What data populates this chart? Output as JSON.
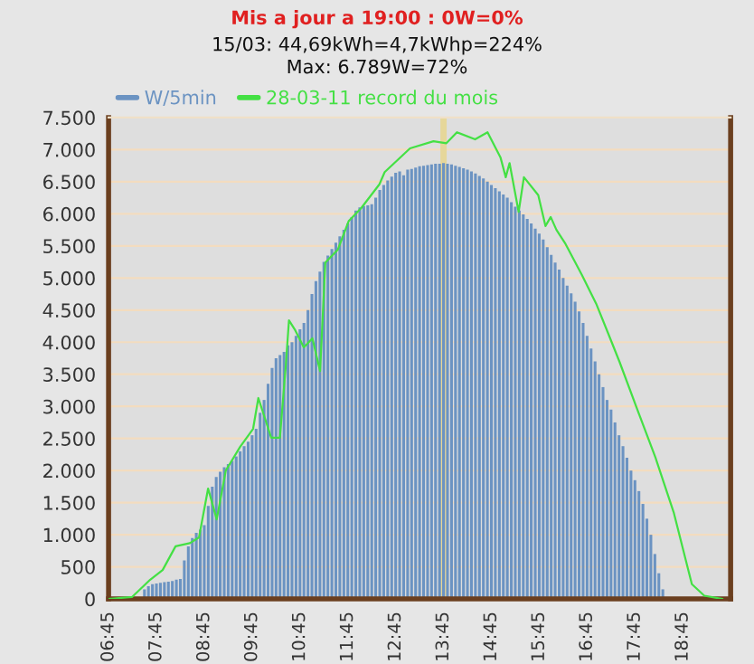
{
  "chart_data": {
    "type": "bar",
    "title": "Mis a jour a 19:00 : 0W=0%",
    "subtitle": "15/03: 44,69kWh=4,7kWhp=224%\nMax: 6.789W=72%",
    "series": [
      {
        "name": "W/5min",
        "color": "#6b93c2",
        "x": [
          6.75,
          6.833,
          6.917,
          7.0,
          7.083,
          7.167,
          7.25,
          7.333,
          7.417,
          7.5,
          7.583,
          7.667,
          7.75,
          7.833,
          7.917,
          8.0,
          8.083,
          8.167,
          8.25,
          8.333,
          8.417,
          8.5,
          8.583,
          8.667,
          8.75,
          8.833,
          8.917,
          9.0,
          9.083,
          9.167,
          9.25,
          9.333,
          9.417,
          9.5,
          9.583,
          9.667,
          9.75,
          9.833,
          9.917,
          10.0,
          10.083,
          10.167,
          10.25,
          10.333,
          10.417,
          10.5,
          10.583,
          10.667,
          10.75,
          10.833,
          10.917,
          11.0,
          11.083,
          11.167,
          11.25,
          11.333,
          11.417,
          11.5,
          11.583,
          11.667,
          11.75,
          11.833,
          11.917,
          12.0,
          12.083,
          12.167,
          12.25,
          12.333,
          12.417,
          12.5,
          12.583,
          12.667,
          12.75,
          12.833,
          12.917,
          13.0,
          13.083,
          13.167,
          13.25,
          13.333,
          13.417,
          13.5,
          13.583,
          13.667,
          13.75,
          13.833,
          13.917,
          14.0,
          14.083,
          14.167,
          14.25,
          14.333,
          14.417,
          14.5,
          14.583,
          14.667,
          14.75,
          14.833,
          14.917,
          15.0,
          15.083,
          15.167,
          15.25,
          15.333,
          15.417,
          15.5,
          15.583,
          15.667,
          15.75,
          15.833,
          15.917,
          16.0,
          16.083,
          16.167,
          16.25,
          16.333,
          16.417,
          16.5,
          16.583,
          16.667,
          16.75,
          16.833,
          16.917,
          17.0,
          17.083,
          17.167,
          17.25,
          17.333,
          17.417,
          17.5,
          17.583,
          17.667,
          17.75,
          17.833,
          17.917,
          18.0,
          18.083,
          18.167,
          18.25,
          18.333
        ],
        "values": [
          0,
          0,
          0,
          0,
          0,
          0,
          0,
          0,
          0,
          150,
          200,
          230,
          240,
          250,
          260,
          270,
          280,
          300,
          310,
          600,
          820,
          950,
          1030,
          1080,
          1150,
          1450,
          1750,
          1900,
          1980,
          2050,
          2100,
          2150,
          2220,
          2300,
          2380,
          2450,
          2550,
          2650,
          2900,
          3100,
          3350,
          3600,
          3750,
          3800,
          3850,
          3950,
          4000,
          4100,
          4200,
          4300,
          4500,
          4750,
          4950,
          5100,
          5250,
          5350,
          5450,
          5550,
          5650,
          5750,
          5850,
          5950,
          6050,
          6100,
          6120,
          6130,
          6150,
          6250,
          6370,
          6450,
          6520,
          6580,
          6640,
          6660,
          6600,
          6690,
          6700,
          6720,
          6740,
          6750,
          6760,
          6770,
          6780,
          6780,
          6789,
          6780,
          6770,
          6750,
          6730,
          6710,
          6690,
          6660,
          6630,
          6590,
          6550,
          6500,
          6450,
          6400,
          6350,
          6300,
          6250,
          6180,
          6110,
          6050,
          5990,
          5920,
          5850,
          5770,
          5690,
          5600,
          5480,
          5360,
          5240,
          5130,
          5000,
          4880,
          4760,
          4630,
          4480,
          4300,
          4100,
          3900,
          3700,
          3500,
          3300,
          3100,
          2950,
          2750,
          2550,
          2380,
          2200,
          2000,
          1850,
          1680,
          1480,
          1250,
          1000,
          700,
          400,
          150
        ]
      },
      {
        "name": "28-03-11 record du mois",
        "type": "line",
        "color": "#44e044",
        "x": [
          6.75,
          7.24,
          7.62,
          7.88,
          8.15,
          8.45,
          8.64,
          8.83,
          9.01,
          9.2,
          9.5,
          9.77,
          9.88,
          10.15,
          10.33,
          10.45,
          10.52,
          10.64,
          10.83,
          11.01,
          11.17,
          11.28,
          11.54,
          11.77,
          12.03,
          12.41,
          12.52,
          13.05,
          13.54,
          13.81,
          14.03,
          14.41,
          14.67,
          14.94,
          15.05,
          15.13,
          15.32,
          15.43,
          15.73,
          15.88,
          15.99,
          16.11,
          16.3,
          16.64,
          16.94,
          17.2,
          17.43,
          17.81,
          18.18,
          18.56,
          18.94,
          19.2,
          19.58
        ],
        "values": [
          0,
          30,
          300,
          450,
          820,
          870,
          960,
          1720,
          1240,
          2000,
          2370,
          2650,
          3130,
          2510,
          2510,
          3600,
          4340,
          4200,
          3920,
          4060,
          3550,
          5240,
          5440,
          5890,
          6090,
          6460,
          6650,
          7020,
          7130,
          7100,
          7270,
          7160,
          7270,
          6880,
          6570,
          6790,
          6030,
          6570,
          6290,
          5810,
          5950,
          5750,
          5530,
          5050,
          4600,
          4120,
          3690,
          2930,
          2200,
          1350,
          230,
          50,
          0
        ]
      }
    ],
    "xlim": [
      6.75,
      19.75
    ],
    "xticks": [
      {
        "value": 6.75,
        "label": "06:45"
      },
      {
        "value": 7.75,
        "label": "07:45"
      },
      {
        "value": 8.75,
        "label": "08:45"
      },
      {
        "value": 9.75,
        "label": "09:45"
      },
      {
        "value": 10.75,
        "label": "10:45"
      },
      {
        "value": 11.75,
        "label": "11:45"
      },
      {
        "value": 12.75,
        "label": "12:45"
      },
      {
        "value": 13.75,
        "label": "13:45"
      },
      {
        "value": 14.75,
        "label": "14:45"
      },
      {
        "value": 15.75,
        "label": "15:45"
      },
      {
        "value": 16.75,
        "label": "16:45"
      },
      {
        "value": 17.75,
        "label": "17:45"
      },
      {
        "value": 18.75,
        "label": "18:45"
      }
    ],
    "ylim": [
      0,
      7500
    ],
    "yticks": [
      0,
      {
        "value": 500,
        "label": "500"
      },
      {
        "value": 1000,
        "label": "1.000"
      },
      {
        "value": 1500,
        "label": "1.500"
      },
      {
        "value": 2000,
        "label": "2.000"
      },
      {
        "value": 2500,
        "label": "2.500"
      },
      {
        "value": 3000,
        "label": "3.000"
      },
      {
        "value": 3500,
        "label": "3.500"
      },
      {
        "value": 4000,
        "label": "4.000"
      },
      {
        "value": 4500,
        "label": "4.500"
      },
      {
        "value": 5000,
        "label": "5.000"
      },
      {
        "value": 5500,
        "label": "5.500"
      },
      {
        "value": 6000,
        "label": "6.000"
      },
      {
        "value": 6500,
        "label": "6.500"
      },
      {
        "value": 7000,
        "label": "7.000"
      },
      {
        "value": 7500,
        "label": "7.500"
      }
    ],
    "ref_lines": [
      {
        "axis": "x",
        "value": 13.75,
        "label": null,
        "color": "#e6d79a"
      }
    ],
    "grid": "y",
    "legend": "top left"
  }
}
